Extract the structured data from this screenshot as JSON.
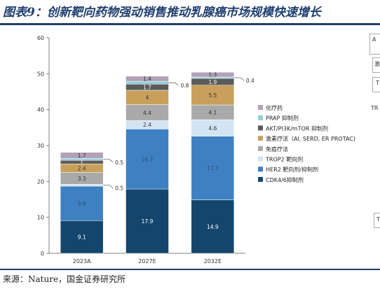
{
  "figure": {
    "title": "图表9：创新靶向药物强动销售推动乳腺癌市场规模快速增长",
    "source": "来源：Nature，国金证券研究所"
  },
  "chart_data": {
    "type": "bar",
    "stacked": true,
    "categories": [
      "2023A",
      "2027E",
      "2032E"
    ],
    "ylim": [
      0,
      60
    ],
    "yticks": [
      0,
      10,
      20,
      30,
      40,
      50,
      60
    ],
    "grid": false,
    "legend_position": "right",
    "series": [
      {
        "name": "CDK4/6抑制剂",
        "color": "#14466d",
        "values": [
          9.1,
          17.9,
          14.9
        ],
        "labels": [
          "9.1",
          "17.9",
          "14.9"
        ],
        "label_color": "#ffffff"
      },
      {
        "name": "HER2 靶向剂/抑制剂",
        "color": "#3e80c2",
        "values": [
          9.6,
          16.7,
          17.7
        ],
        "labels": [
          "9.6",
          "16.7",
          "17.7"
        ],
        "label_color": "#2a4f78"
      },
      {
        "name": "TROP2 靶向剂",
        "color": "#d3e4f3",
        "values": [
          0.5,
          2.4,
          4.6
        ],
        "labels": [
          "0.5",
          "2.4",
          "4.6"
        ],
        "label_color": "#333333"
      },
      {
        "name": "免疫疗法",
        "color": "#a9a9a9",
        "values": [
          3.3,
          4.4,
          4.1
        ],
        "labels": [
          "3.3",
          "4.4",
          "4.1"
        ],
        "label_color": "#333333"
      },
      {
        "name": "激素疗法（AI, SERD, ER PROTAC)",
        "color": "#c8a05c",
        "values": [
          2.4,
          4,
          5.5
        ],
        "labels": [
          "2.4",
          "4",
          "5.5"
        ],
        "label_color": "#333333"
      },
      {
        "name": "AKT/PI3K/mTOR 抑制剂",
        "color": "#5b5b5b",
        "values": [
          1,
          1.7,
          1.9
        ],
        "labels": [
          "1",
          "1.7",
          "1.9"
        ],
        "label_color": "#ffffff"
      },
      {
        "name": "PRAP 抑制剂",
        "color": "#8fd0d8",
        "values": [
          0.5,
          0.8,
          0.4
        ],
        "labels": [
          "0.5",
          "0.8",
          "0.4"
        ],
        "label_color": "#333333"
      },
      {
        "name": "化疗药",
        "color": "#b2a1b9",
        "values": [
          1.7,
          1.4,
          1.3
        ],
        "labels": [
          "1.7",
          "1.4",
          "1.3"
        ],
        "label_color": "#333333"
      }
    ],
    "callouts": [
      {
        "category": 0,
        "series": 2,
        "text": "0.5"
      },
      {
        "category": 0,
        "series": 6,
        "text": "0.5"
      },
      {
        "category": 1,
        "series": 6,
        "text": "0.8"
      },
      {
        "category": 2,
        "series": 6,
        "text": "0.4"
      }
    ]
  },
  "cutoff": {
    "box1": "A",
    "box2": "激",
    "box3": "T",
    "label": "TR",
    "box4": "T"
  }
}
